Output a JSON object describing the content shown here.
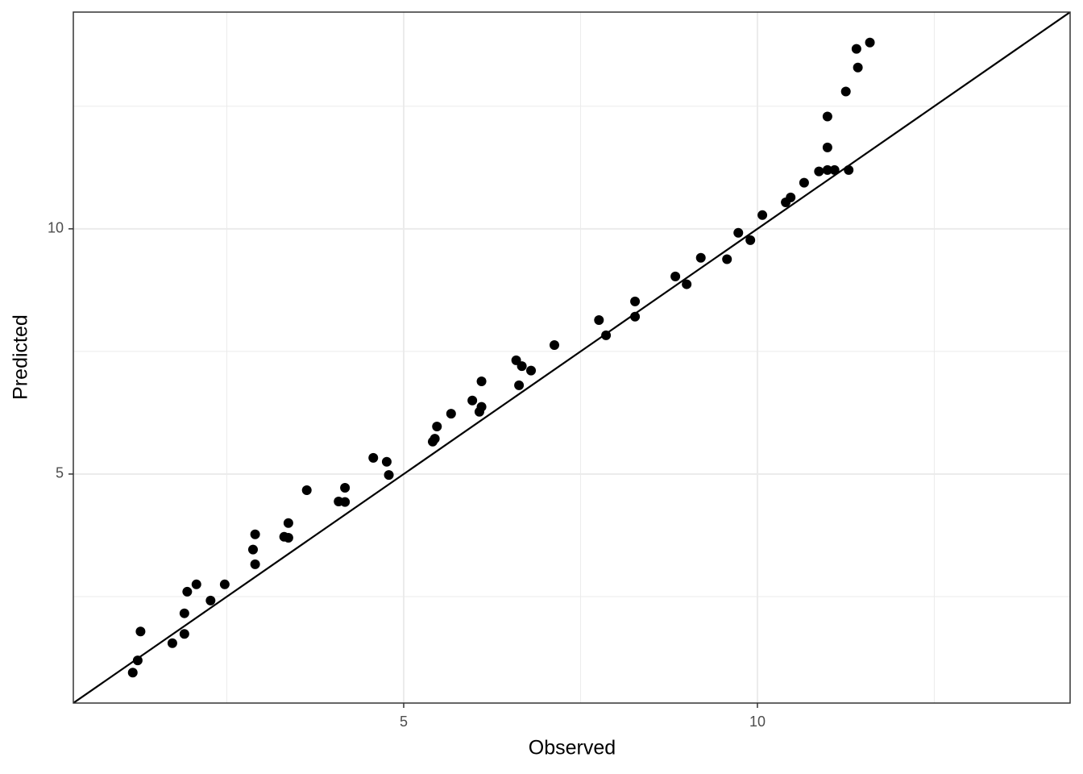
{
  "chart_data": {
    "type": "scatter",
    "x_label": "Observed",
    "y_label": "Predicted",
    "xlim": [
      0.33,
      14.42
    ],
    "ylim": [
      0.33,
      14.42
    ],
    "xticks": [
      5,
      10
    ],
    "yticks": [
      5,
      10
    ],
    "minor_xticks": [
      2.5,
      7.5,
      12.5
    ],
    "minor_yticks": [
      2.5,
      7.5,
      12.5
    ],
    "grid": true,
    "color": "#000000",
    "reference_line": {
      "slope": 1,
      "intercept": 0
    },
    "x": [
      1.17,
      1.24,
      1.28,
      1.73,
      1.9,
      1.9,
      1.94,
      2.07,
      2.27,
      2.47,
      2.87,
      2.9,
      2.9,
      3.31,
      3.37,
      3.37,
      3.63,
      4.08,
      4.17,
      4.17,
      4.57,
      4.76,
      4.79,
      5.41,
      5.44,
      5.47,
      5.67,
      5.97,
      6.07,
      6.1,
      6.1,
      6.59,
      6.63,
      6.67,
      6.8,
      7.13,
      7.76,
      7.86,
      8.27,
      8.27,
      8.84,
      9.0,
      9.2,
      9.57,
      9.73,
      9.9,
      10.07,
      10.4,
      10.47,
      10.66,
      10.87,
      10.99,
      10.99,
      10.99,
      11.09,
      11.25,
      11.29,
      11.4,
      11.42,
      11.59
    ],
    "values": [
      0.95,
      1.2,
      1.79,
      1.55,
      1.74,
      2.16,
      2.6,
      2.75,
      2.42,
      2.75,
      3.46,
      3.77,
      3.16,
      3.72,
      4.0,
      3.7,
      4.67,
      4.44,
      4.72,
      4.43,
      5.33,
      5.25,
      4.98,
      5.66,
      5.72,
      5.97,
      6.23,
      6.5,
      6.27,
      6.37,
      6.89,
      7.32,
      6.81,
      7.2,
      7.11,
      7.63,
      8.14,
      7.83,
      8.52,
      8.21,
      9.03,
      8.87,
      9.41,
      9.38,
      9.92,
      9.77,
      10.28,
      10.54,
      10.64,
      10.94,
      11.17,
      11.2,
      11.66,
      12.29,
      11.2,
      12.8,
      11.2,
      13.67,
      13.29,
      13.8
    ]
  }
}
